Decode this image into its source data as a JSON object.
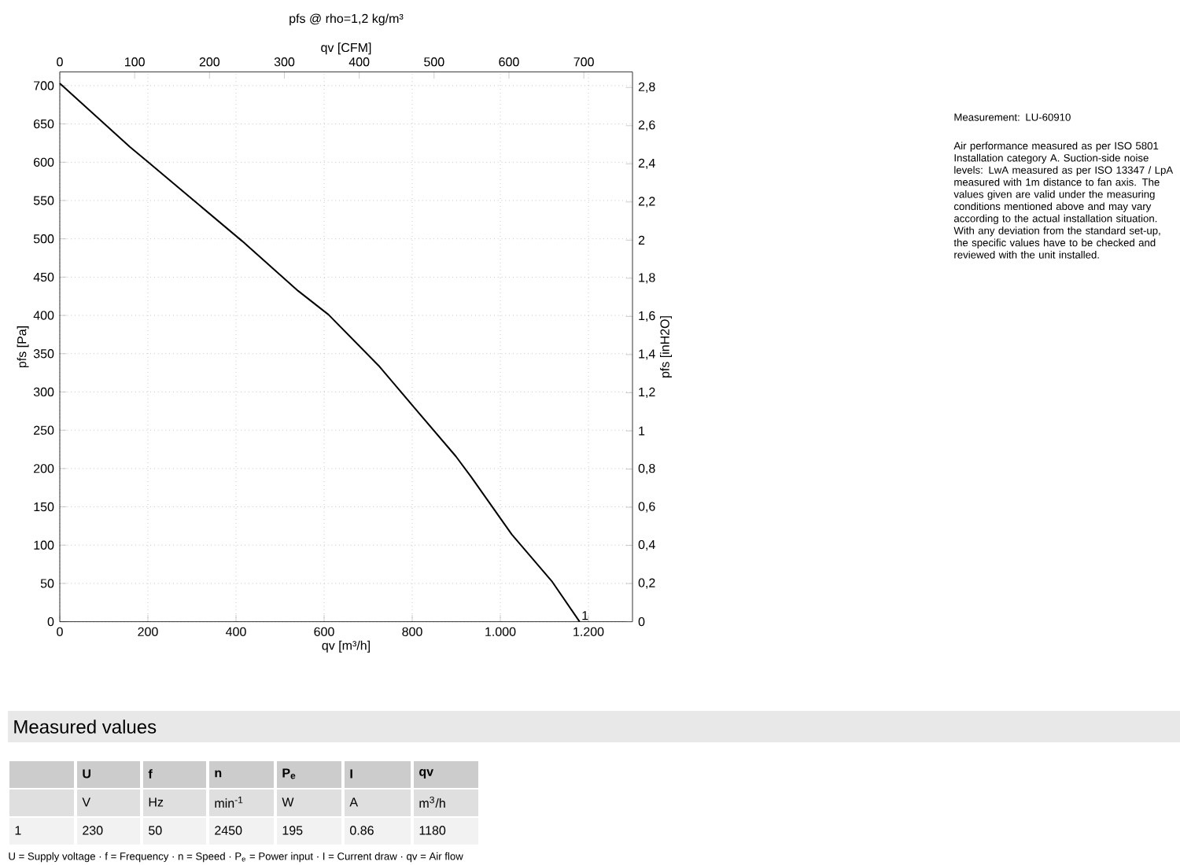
{
  "chart_data": [
    {
      "type": "line",
      "title": "pfs @ rho=1,2 kg/m³",
      "xlabel": "qv [m³/h]",
      "x2label": "qv [CFM]",
      "ylabel": "pfs [Pa]",
      "y2label": "pfs [inH2O]",
      "xlim": [
        0,
        1300
      ],
      "xticks": [
        0,
        200,
        400,
        600,
        800,
        {
          "value": 1000,
          "label": "1.000"
        },
        {
          "value": 1200,
          "label": "1.200"
        }
      ],
      "x2lim": [
        0,
        765
      ],
      "x2ticks": [
        0,
        100,
        200,
        300,
        400,
        500,
        600,
        700
      ],
      "ylim": [
        0,
        718
      ],
      "yticks": [
        0,
        50,
        100,
        150,
        200,
        250,
        300,
        350,
        400,
        450,
        500,
        550,
        600,
        650,
        700
      ],
      "y2lim": [
        0,
        2.882
      ],
      "y2ticks": [
        0,
        {
          "value": 0.2,
          "label": "0,2"
        },
        {
          "value": 0.4,
          "label": "0,4"
        },
        {
          "value": 0.6,
          "label": "0,6"
        },
        {
          "value": 0.8,
          "label": "0,8"
        },
        1,
        {
          "value": 1.2,
          "label": "1,2"
        },
        {
          "value": 1.4,
          "label": "1,4"
        },
        {
          "value": 1.6,
          "label": "1,6"
        },
        {
          "value": 1.8,
          "label": "1,8"
        },
        2,
        {
          "value": 2.2,
          "label": "2,2"
        },
        {
          "value": 2.4,
          "label": "2,4"
        },
        {
          "value": 2.6,
          "label": "2,6"
        },
        {
          "value": 2.8,
          "label": "2,8"
        }
      ],
      "grid": true,
      "line_style": "solid",
      "series": [
        {
          "color": "#000000",
          "x": [
            0,
            159,
            203,
            414,
            541,
            610,
            726,
            807,
            899,
            934,
            1026,
            1118,
            1180
          ],
          "values": [
            703,
            620,
            599,
            497,
            432,
            401,
            333,
            278,
            216,
            189,
            114,
            52,
            0
          ]
        }
      ],
      "annotations": [
        {
          "text": "1",
          "x": 1180,
          "y": 0
        },
        "Measurement: LU-60910",
        "Air performance measured as per ISO 5801 Installation category A. Suction-side noise levels: LwA measured as per ISO 13347 / LpA measured with 1m distance to fan axis. The values given are valid under the measuring conditions mentioned above and may vary according to the actual installation situation. With any deviation from the standard set-up, the specific values have to be checked and reviewed with the unit installed."
      ]
    },
    {
      "type": "other",
      "title": "Measured values",
      "categories": [
        null,
        "U",
        "f",
        "n",
        "P$_{e}$",
        "I",
        "qv"
      ],
      "annotations": [
        "V",
        "Hz",
        "min$^{-1}$",
        "W",
        "A",
        "m$^{3}$/h",
        "1",
        "230",
        "50",
        "2450",
        "195",
        "0.86",
        "1180",
        "U = Supply voltage · f = Frequency · n = Speed · P$_{e}$ = Power input · I = Current draw · qv = Air flow"
      ]
    }
  ]
}
